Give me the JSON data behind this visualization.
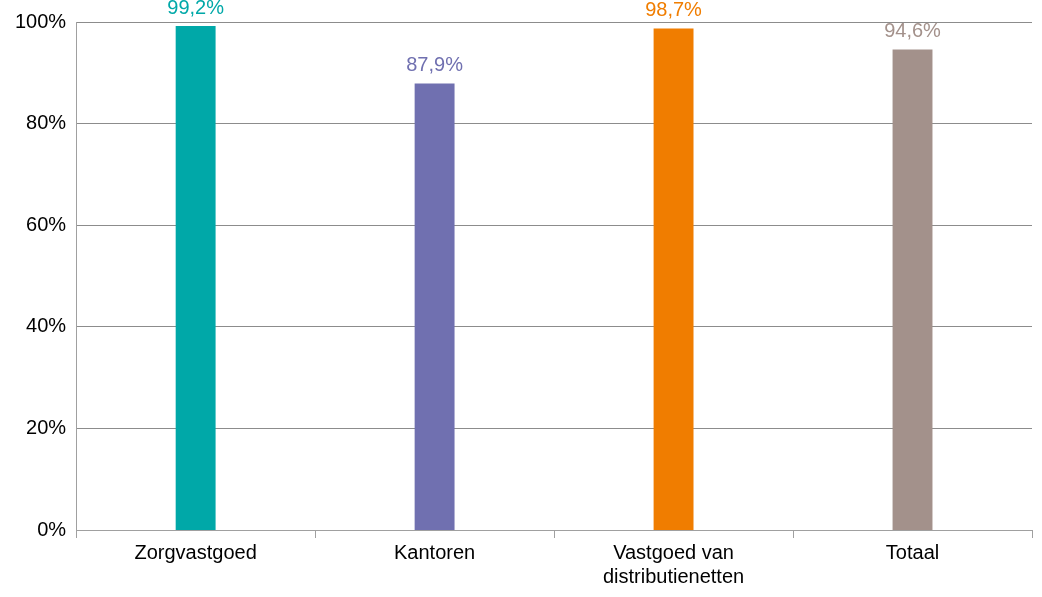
{
  "chart_data": {
    "type": "bar",
    "categories": [
      "Zorgvastgoed",
      "Kantoren",
      "Vastgoed van distributienetten",
      "Totaal"
    ],
    "values": [
      99.2,
      87.9,
      98.7,
      94.6
    ],
    "colors": [
      "#00a8a8",
      "#7070b0",
      "#f07d00",
      "#a3918b"
    ],
    "value_labels": [
      "99,2%",
      "87,9%",
      "98,7%",
      "94,6%"
    ],
    "ylim": [
      0,
      100
    ],
    "yticks": [
      {
        "value": 0,
        "label": "0%"
      },
      {
        "value": 20,
        "label": "20%"
      },
      {
        "value": 40,
        "label": "40%"
      },
      {
        "value": 60,
        "label": "60%"
      },
      {
        "value": 80,
        "label": "80%"
      },
      {
        "value": 100,
        "label": "100%"
      }
    ],
    "grid": "y",
    "legend": false
  }
}
